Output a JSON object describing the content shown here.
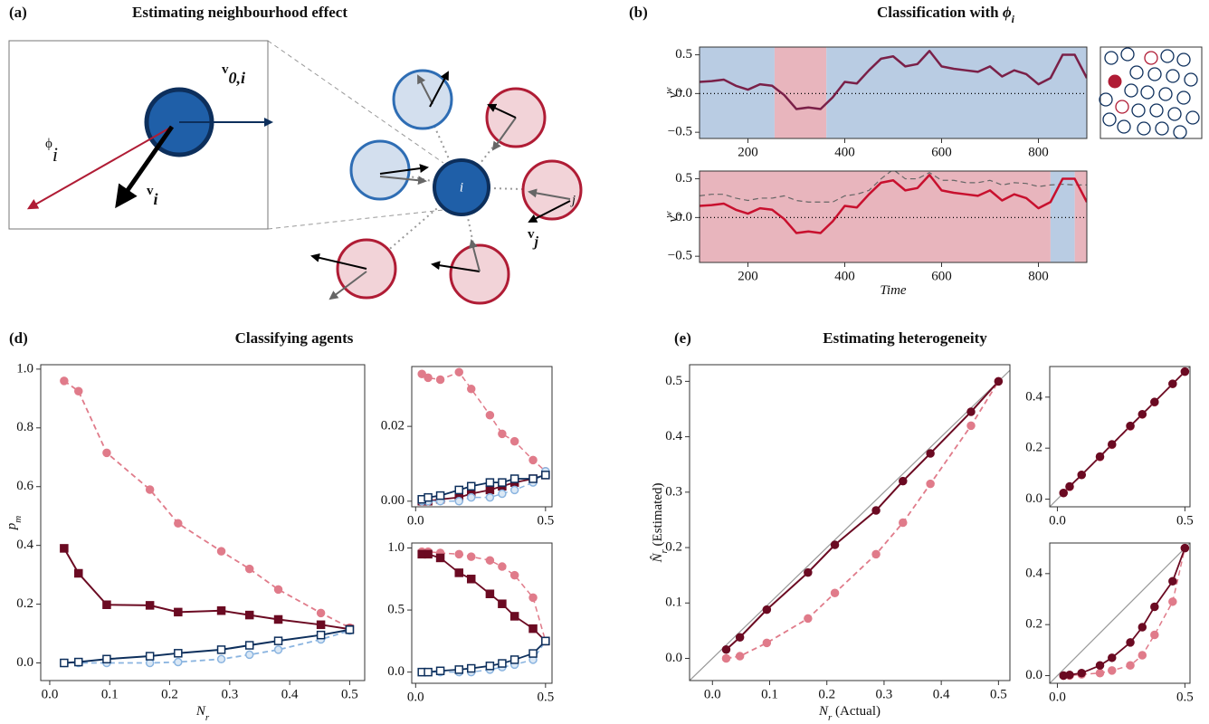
{
  "panels": [
    {
      "label": "(a)",
      "title": "Estimating neighbourhood effect"
    },
    {
      "label": "(b)",
      "title": "Classification with ",
      "title_symbol": "ϕ",
      "title_sub": "i"
    },
    {
      "label": "(d)",
      "title": "Classifying agents"
    },
    {
      "label": "(e)",
      "title": "Estimating heterogeneity"
    }
  ],
  "diagram": {
    "phi": {
      "main": "ϕ",
      "sub": "i"
    },
    "v0": {
      "main": "v",
      "sub": "0,i"
    },
    "vi": {
      "main": "v",
      "sub": "i"
    },
    "focal": "i",
    "neighbour": "j",
    "vj": {
      "main": "v",
      "sub": "j"
    }
  },
  "chart_data": [
    {
      "type": "line",
      "xlim": [
        100,
        900
      ],
      "ylim": [
        -0.58,
        0.6
      ],
      "xticks": [
        200,
        400,
        600,
        800
      ],
      "yticks": [
        {
          "value": -0.5,
          "label": "−0.5"
        },
        {
          "value": 0,
          "label": "0.0"
        },
        0.5
      ],
      "ylabel": {
        "main": "v",
        "sub": "i",
        "sup": "w"
      },
      "hline": 0,
      "regions": [
        {
          "start": 100,
          "end": 255,
          "color": "#b9cce3"
        },
        {
          "start": 255,
          "end": 362,
          "color": "#e8b5bd"
        },
        {
          "start": 362,
          "end": 900,
          "color": "#b9cce3"
        }
      ],
      "x": [
        100,
        125,
        150,
        175,
        200,
        225,
        250,
        275,
        300,
        325,
        350,
        375,
        400,
        425,
        450,
        475,
        500,
        525,
        550,
        575,
        600,
        625,
        650,
        675,
        700,
        725,
        750,
        775,
        800,
        825,
        850,
        875,
        900
      ],
      "series": [
        {
          "color": "#7a2048",
          "width": 2.5,
          "values": [
            0.15,
            0.16,
            0.18,
            0.1,
            0.05,
            0.12,
            0.1,
            -0.02,
            -0.2,
            -0.18,
            -0.2,
            -0.05,
            0.15,
            0.13,
            0.3,
            0.45,
            0.48,
            0.35,
            0.38,
            0.55,
            0.35,
            0.32,
            0.3,
            0.28,
            0.35,
            0.22,
            0.3,
            0.25,
            0.12,
            0.2,
            0.5,
            0.5,
            0.2
          ]
        }
      ]
    },
    {
      "type": "line",
      "xlim": [
        100,
        900
      ],
      "ylim": [
        -0.58,
        0.6
      ],
      "xticks": [
        200,
        400,
        600,
        800
      ],
      "yticks": [
        {
          "value": -0.5,
          "label": "−0.5"
        },
        {
          "value": 0,
          "label": "0.0"
        },
        0.5
      ],
      "xlabel": {
        "main": "Time"
      },
      "ylabel": {
        "main": "v",
        "sub": "i",
        "sup": "w"
      },
      "hline": 0,
      "regions": [
        {
          "start": 100,
          "end": 825,
          "color": "#e8b5bd"
        },
        {
          "start": 825,
          "end": 875,
          "color": "#b9cce3"
        },
        {
          "start": 875,
          "end": 900,
          "color": "#e8b5bd"
        }
      ],
      "x": [
        100,
        125,
        150,
        175,
        200,
        225,
        250,
        275,
        300,
        325,
        350,
        375,
        400,
        425,
        450,
        475,
        500,
        525,
        550,
        575,
        600,
        625,
        650,
        675,
        700,
        725,
        750,
        775,
        800,
        825,
        850,
        875,
        900
      ],
      "series": [
        {
          "color": "#666666",
          "width": 1.2,
          "dash": true,
          "values": [
            0.28,
            0.3,
            0.3,
            0.25,
            0.22,
            0.25,
            0.25,
            0.28,
            0.22,
            0.2,
            0.2,
            0.2,
            0.28,
            0.3,
            0.35,
            0.5,
            0.62,
            0.5,
            0.5,
            0.58,
            0.48,
            0.48,
            0.45,
            0.45,
            0.48,
            0.42,
            0.45,
            0.44,
            0.4,
            0.42,
            0.43,
            0.42,
            0.42
          ]
        },
        {
          "color": "#c8102e",
          "width": 2.5,
          "values": [
            0.15,
            0.16,
            0.18,
            0.1,
            0.05,
            0.12,
            0.1,
            -0.02,
            -0.2,
            -0.18,
            -0.2,
            -0.05,
            0.15,
            0.13,
            0.3,
            0.45,
            0.48,
            0.35,
            0.38,
            0.55,
            0.35,
            0.32,
            0.3,
            0.28,
            0.35,
            0.22,
            0.3,
            0.25,
            0.12,
            0.2,
            0.5,
            0.5,
            0.2
          ]
        }
      ]
    },
    {
      "type": "line",
      "xlim": [
        -0.015,
        0.525
      ],
      "ylim": [
        -0.06,
        1.015
      ],
      "xticks": [
        {
          "value": 0,
          "label": "0.0"
        },
        0.1,
        0.2,
        0.3,
        0.4,
        0.5
      ],
      "yticks": [
        {
          "value": 0,
          "label": "0.0"
        },
        0.2,
        0.4,
        0.6,
        0.8,
        {
          "value": 1,
          "label": "1.0"
        }
      ],
      "xlabel": {
        "main": "N",
        "sub": "r"
      },
      "ylabel": {
        "main": "p",
        "sub": "m"
      },
      "x": [
        0.024,
        0.048,
        0.095,
        0.167,
        0.214,
        0.286,
        0.333,
        0.381,
        0.452,
        0.5
      ],
      "series": [
        {
          "color": "#e07b8a",
          "width": 1.8,
          "dash": true,
          "marker": "circle",
          "marker_fill": "#e07b8a",
          "values": [
            0.96,
            0.925,
            0.715,
            0.59,
            0.475,
            0.38,
            0.32,
            0.25,
            0.17,
            0.12
          ]
        },
        {
          "color": "#6b0a22",
          "width": 2,
          "marker": "square",
          "marker_fill": "#6b0a22",
          "values": [
            0.39,
            0.305,
            0.198,
            0.196,
            0.173,
            0.178,
            0.163,
            0.148,
            0.13,
            0.115
          ]
        },
        {
          "color": "#8ab4e0",
          "width": 1.8,
          "dash": true,
          "marker": "circle",
          "marker_fill": "#dbe8f5",
          "values": [
            0,
            0,
            0,
            0,
            0.003,
            0.013,
            0.028,
            0.045,
            0.08,
            0.11
          ]
        },
        {
          "color": "#0d2f5c",
          "width": 2,
          "marker": "square",
          "marker_fill": "#ffffff",
          "values": [
            0,
            0.003,
            0.013,
            0.023,
            0.033,
            0.045,
            0.06,
            0.075,
            0.095,
            0.113
          ]
        }
      ]
    },
    {
      "type": "line",
      "xlim": [
        -0.015,
        0.525
      ],
      "ylim": [
        -0.0015,
        0.036
      ],
      "xticks": [
        {
          "value": 0,
          "label": "0.0"
        },
        0.5
      ],
      "yticks": [
        {
          "value": 0,
          "label": "0.00"
        },
        {
          "value": 0.02,
          "label": "0.02"
        }
      ],
      "x": [
        0.024,
        0.048,
        0.095,
        0.167,
        0.214,
        0.286,
        0.333,
        0.381,
        0.452,
        0.5
      ],
      "series": [
        {
          "color": "#e07b8a",
          "width": 1.5,
          "dash": true,
          "marker": "circle",
          "marker_fill": "#e07b8a",
          "values": [
            0.034,
            0.033,
            0.0325,
            0.0345,
            0.03,
            0.023,
            0.018,
            0.016,
            0.011,
            0.008
          ]
        },
        {
          "color": "#6b0a22",
          "width": 1.8,
          "marker": "square",
          "marker_fill": "#6b0a22",
          "values": [
            0,
            0,
            0.0005,
            0.001,
            0.002,
            0.003,
            0.004,
            0.005,
            0.006,
            0.007
          ]
        },
        {
          "color": "#8ab4e0",
          "width": 1.5,
          "dash": true,
          "marker": "circle",
          "marker_fill": "#dbe8f5",
          "values": [
            0,
            0,
            0,
            0,
            0.001,
            0.001,
            0.002,
            0.003,
            0.005,
            0.008
          ]
        },
        {
          "color": "#0d2f5c",
          "width": 1.8,
          "marker": "square",
          "marker_fill": "#ffffff",
          "values": [
            0.0005,
            0.001,
            0.0015,
            0.003,
            0.004,
            0.005,
            0.005,
            0.006,
            0.006,
            0.007
          ]
        }
      ]
    },
    {
      "type": "line",
      "xlim": [
        -0.015,
        0.525
      ],
      "ylim": [
        -0.09,
        1.04
      ],
      "xticks": [
        {
          "value": 0,
          "label": "0.0"
        },
        0.5
      ],
      "yticks": [
        {
          "value": 0,
          "label": "0.0"
        },
        0.5,
        {
          "value": 1,
          "label": "1.0"
        }
      ],
      "x": [
        0.024,
        0.048,
        0.095,
        0.167,
        0.214,
        0.286,
        0.333,
        0.381,
        0.452,
        0.5
      ],
      "series": [
        {
          "color": "#e07b8a",
          "width": 1.5,
          "dash": true,
          "marker": "circle",
          "marker_fill": "#e07b8a",
          "values": [
            0.97,
            0.97,
            0.96,
            0.95,
            0.93,
            0.9,
            0.85,
            0.78,
            0.6,
            0.25
          ]
        },
        {
          "color": "#6b0a22",
          "width": 1.8,
          "marker": "square",
          "marker_fill": "#6b0a22",
          "values": [
            0.95,
            0.95,
            0.92,
            0.8,
            0.75,
            0.63,
            0.55,
            0.45,
            0.35,
            0.25
          ]
        },
        {
          "color": "#8ab4e0",
          "width": 1.5,
          "dash": true,
          "marker": "circle",
          "marker_fill": "#dbe8f5",
          "values": [
            0,
            0,
            0,
            0,
            0,
            0.02,
            0.04,
            0.06,
            0.1,
            0.25
          ]
        },
        {
          "color": "#0d2f5c",
          "width": 1.8,
          "marker": "square",
          "marker_fill": "#ffffff",
          "values": [
            0,
            0,
            0.01,
            0.02,
            0.03,
            0.05,
            0.07,
            0.1,
            0.15,
            0.25
          ]
        }
      ]
    },
    {
      "type": "line",
      "xlim": [
        -0.04,
        0.52
      ],
      "ylim": [
        -0.04,
        0.53
      ],
      "diagonal": true,
      "xticks": [
        {
          "value": 0,
          "label": "0.0"
        },
        0.1,
        0.2,
        0.3,
        0.4,
        0.5
      ],
      "yticks": [
        {
          "value": 0,
          "label": "0.0"
        },
        0.1,
        0.2,
        0.3,
        0.4,
        0.5
      ],
      "xlabel": {
        "main": "N",
        "sub": "r",
        "rest": " (Actual)"
      },
      "ylabel": {
        "main": "N̂",
        "sub": "r",
        "rest": " (Estimated)"
      },
      "x": [
        0.024,
        0.048,
        0.095,
        0.167,
        0.214,
        0.286,
        0.333,
        0.381,
        0.452,
        0.5
      ],
      "series": [
        {
          "color": "#e07b8a",
          "width": 1.8,
          "dash": true,
          "marker": "circle",
          "marker_fill": "#e07b8a",
          "values": [
            0,
            0.004,
            0.028,
            0.072,
            0.118,
            0.188,
            0.245,
            0.315,
            0.42,
            0.5
          ]
        },
        {
          "color": "#6b0a22",
          "width": 2,
          "marker": "circle",
          "marker_fill": "#6b0a22",
          "values": [
            0.016,
            0.038,
            0.088,
            0.155,
            0.205,
            0.267,
            0.32,
            0.37,
            0.445,
            0.5
          ]
        }
      ]
    },
    {
      "type": "line",
      "xlim": [
        -0.03,
        0.52
      ],
      "ylim": [
        -0.03,
        0.52
      ],
      "diagonal": true,
      "xticks": [
        {
          "value": 0,
          "label": "0.0"
        },
        0.5
      ],
      "yticks": [
        {
          "value": 0,
          "label": "0.0"
        },
        0.2,
        0.4
      ],
      "x": [
        0.024,
        0.048,
        0.095,
        0.167,
        0.214,
        0.286,
        0.333,
        0.381,
        0.452,
        0.5
      ],
      "series": [
        {
          "color": "#e07b8a",
          "width": 1.5,
          "dash": true,
          "marker": "circle",
          "marker_fill": "#e07b8a",
          "values": [
            0.024,
            0.048,
            0.095,
            0.165,
            0.213,
            0.285,
            0.332,
            0.38,
            0.452,
            0.5
          ]
        },
        {
          "color": "#6b0a22",
          "width": 1.8,
          "marker": "circle",
          "marker_fill": "#6b0a22",
          "values": [
            0.024,
            0.05,
            0.095,
            0.167,
            0.215,
            0.287,
            0.333,
            0.381,
            0.452,
            0.5
          ]
        }
      ]
    },
    {
      "type": "line",
      "xlim": [
        -0.03,
        0.52
      ],
      "ylim": [
        -0.03,
        0.52
      ],
      "diagonal": true,
      "xticks": [
        {
          "value": 0,
          "label": "0.0"
        },
        0.5
      ],
      "yticks": [
        {
          "value": 0,
          "label": "0.0"
        },
        0.2,
        0.4
      ],
      "x": [
        0.024,
        0.048,
        0.095,
        0.167,
        0.214,
        0.286,
        0.333,
        0.381,
        0.452,
        0.5
      ],
      "series": [
        {
          "color": "#e07b8a",
          "width": 1.5,
          "dash": true,
          "marker": "circle",
          "marker_fill": "#e07b8a",
          "values": [
            0,
            0,
            0.005,
            0.01,
            0.02,
            0.04,
            0.08,
            0.16,
            0.29,
            0.5
          ]
        },
        {
          "color": "#6b0a22",
          "width": 1.8,
          "marker": "circle",
          "marker_fill": "#6b0a22",
          "values": [
            0,
            0.003,
            0.01,
            0.04,
            0.07,
            0.13,
            0.19,
            0.27,
            0.37,
            0.5
          ]
        }
      ]
    }
  ]
}
